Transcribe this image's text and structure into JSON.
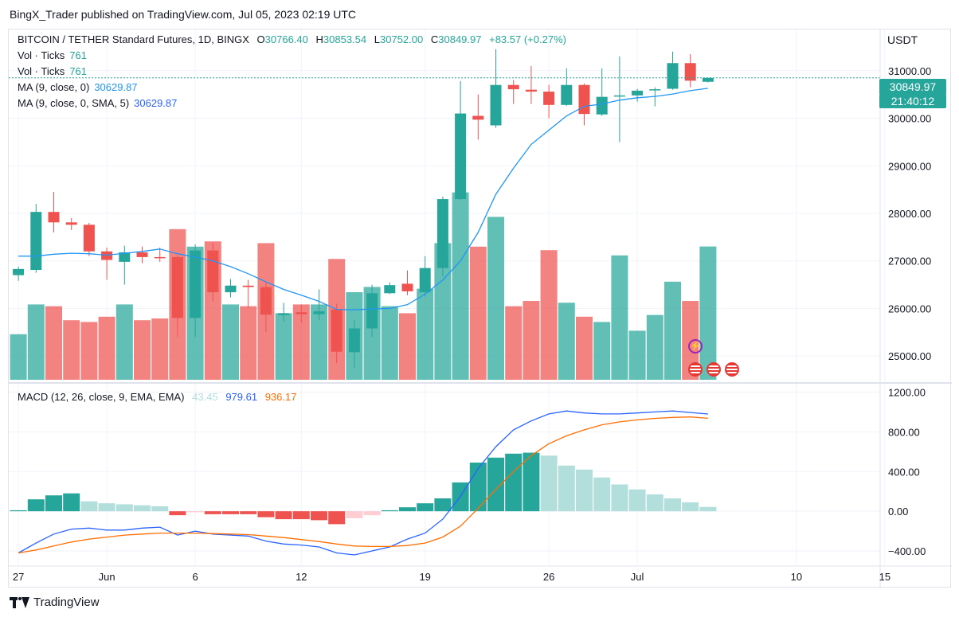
{
  "header": {
    "publish_line": "BingX_Trader published on TradingView.com, Jul 05, 2023 02:19 UTC"
  },
  "symbol": {
    "name": "BITCOIN / TETHER Standard Futures, 1D, BINGX",
    "open_label": "O",
    "open": "30766.40",
    "high_label": "H",
    "high": "30853.54",
    "low_label": "L",
    "low": "30752.00",
    "close_label": "C",
    "close": "30849.97",
    "change": "+83.57 (+0.27%)"
  },
  "indicators": {
    "vol1": {
      "label": "Vol · Ticks",
      "value": "761"
    },
    "vol2": {
      "label": "Vol · Ticks",
      "value": "761"
    },
    "ma1": {
      "label": "MA (9, close, 0)",
      "value": "30629.87"
    },
    "ma2": {
      "label": "MA (9, close, 0, SMA, 5)",
      "value": "30629.87"
    },
    "macd": {
      "label": "MACD (12, 26, close, 9, EMA, EMA)",
      "hist": "43.45",
      "macd": "979.61",
      "signal": "936.17"
    }
  },
  "price_axis": {
    "currency": "USDT",
    "last_price": "30849.97",
    "countdown": "21:40:12",
    "ticks": [
      "31000.00",
      "30000.00",
      "29000.00",
      "28000.00",
      "27000.00",
      "26000.00",
      "25000.00"
    ]
  },
  "macd_axis": {
    "ticks": [
      "1200.00",
      "800.00",
      "400.00",
      "0.00",
      "−400.00"
    ]
  },
  "time_axis": {
    "ticks": [
      "27",
      "Jun",
      "6",
      "12",
      "19",
      "26",
      "Jul",
      "10",
      "15"
    ]
  },
  "footer": {
    "brand": "TradingView"
  },
  "colors": {
    "up": "#26a69a",
    "down": "#ef5350",
    "ma": "#2962ff",
    "signal": "#ff6d00",
    "ma_price": "#2196f3"
  },
  "chart_data": {
    "type": "candlestick",
    "dates": [
      "May 27",
      "May 28",
      "May 29",
      "May 30",
      "May 31",
      "Jun 1",
      "Jun 2",
      "Jun 3",
      "Jun 4",
      "Jun 5",
      "Jun 6",
      "Jun 7",
      "Jun 8",
      "Jun 9",
      "Jun 10",
      "Jun 11",
      "Jun 12",
      "Jun 13",
      "Jun 14",
      "Jun 15",
      "Jun 16",
      "Jun 17",
      "Jun 18",
      "Jun 19",
      "Jun 20",
      "Jun 21",
      "Jun 22",
      "Jun 23",
      "Jun 24",
      "Jun 25",
      "Jun 26",
      "Jun 27",
      "Jun 28",
      "Jun 29",
      "Jun 30",
      "Jul 1",
      "Jul 2",
      "Jul 3",
      "Jul 4",
      "Jul 5"
    ],
    "ohlc": [
      [
        26700,
        26880,
        26580,
        26830
      ],
      [
        26810,
        28200,
        26750,
        28030
      ],
      [
        28030,
        28450,
        27600,
        27810
      ],
      [
        27810,
        27900,
        27650,
        27760
      ],
      [
        27760,
        27800,
        27100,
        27200
      ],
      [
        27200,
        27280,
        26600,
        27020
      ],
      [
        26980,
        27320,
        26500,
        27180
      ],
      [
        27180,
        27300,
        26950,
        27080
      ],
      [
        27080,
        27280,
        26980,
        27070
      ],
      [
        27080,
        27120,
        25400,
        25800
      ],
      [
        25800,
        27350,
        25400,
        27220
      ],
      [
        27220,
        27380,
        26150,
        26340
      ],
      [
        26340,
        26620,
        26230,
        26480
      ],
      [
        26480,
        26600,
        26020,
        26450
      ],
      [
        26450,
        26550,
        25500,
        25870
      ],
      [
        25860,
        26120,
        25720,
        25900
      ],
      [
        25920,
        26080,
        25700,
        25880
      ],
      [
        25880,
        26400,
        25750,
        25940
      ],
      [
        25980,
        26100,
        24850,
        25090
      ],
      [
        25080,
        25750,
        24750,
        25580
      ],
      [
        25580,
        26500,
        25400,
        26320
      ],
      [
        26320,
        26550,
        26300,
        26490
      ],
      [
        26520,
        26800,
        26280,
        26360
      ],
      [
        26340,
        27100,
        26250,
        26850
      ],
      [
        26850,
        28350,
        26680,
        28300
      ],
      [
        28300,
        30780,
        28280,
        30100
      ],
      [
        30050,
        30500,
        29550,
        29970
      ],
      [
        29850,
        31450,
        29800,
        30700
      ],
      [
        30700,
        30800,
        30300,
        30610
      ],
      [
        30600,
        31100,
        30300,
        30560
      ],
      [
        30560,
        30700,
        30000,
        30280
      ],
      [
        30280,
        31050,
        30260,
        30700
      ],
      [
        30700,
        30730,
        29850,
        30090
      ],
      [
        30080,
        31050,
        30050,
        30450
      ],
      [
        30460,
        31300,
        29500,
        30480
      ],
      [
        30480,
        30620,
        30350,
        30580
      ],
      [
        30590,
        30650,
        30250,
        30610
      ],
      [
        30620,
        31400,
        30600,
        31160
      ],
      [
        31160,
        31350,
        30650,
        30790
      ],
      [
        30766.4,
        30853.54,
        30752,
        30849.97
      ]
    ],
    "ma9": [
      27100,
      27100,
      27140,
      27160,
      27150,
      27120,
      27160,
      27200,
      27250,
      27150,
      27080,
      27000,
      26880,
      26730,
      26560,
      26400,
      26280,
      26150,
      25980,
      25970,
      25990,
      26000,
      26080,
      26300,
      26600,
      27000,
      27600,
      28400,
      28950,
      29450,
      29750,
      30050,
      30250,
      30300,
      30380,
      30430,
      30460,
      30510,
      30580,
      30629.87
    ],
    "volume": [
      260,
      430,
      420,
      340,
      330,
      360,
      430,
      340,
      350,
      860,
      760,
      790,
      430,
      420,
      780,
      380,
      430,
      430,
      690,
      500,
      530,
      420,
      380,
      520,
      780,
      1070,
      760,
      930,
      420,
      450,
      740,
      440,
      360,
      330,
      710,
      280,
      370,
      560,
      450,
      761
    ],
    "macd_hist": [
      10,
      120,
      160,
      180,
      100,
      80,
      70,
      60,
      50,
      -40,
      -10,
      -30,
      -30,
      -30,
      -60,
      -80,
      -80,
      -90,
      -130,
      -70,
      -40,
      10,
      40,
      80,
      130,
      290,
      490,
      540,
      580,
      590,
      560,
      460,
      420,
      340,
      270,
      220,
      170,
      130,
      90,
      43.45
    ],
    "macd_line": [
      -420,
      -320,
      -230,
      -180,
      -170,
      -190,
      -190,
      -170,
      -160,
      -240,
      -200,
      -230,
      -240,
      -250,
      -300,
      -330,
      -340,
      -360,
      -420,
      -440,
      -400,
      -360,
      -280,
      -220,
      -80,
      150,
      430,
      650,
      820,
      910,
      980,
      1010,
      990,
      980,
      980,
      990,
      1000,
      1010,
      995,
      979.61
    ],
    "signal_line": [
      -420,
      -390,
      -350,
      -310,
      -280,
      -260,
      -240,
      -230,
      -220,
      -220,
      -220,
      -225,
      -230,
      -235,
      -250,
      -265,
      -285,
      -305,
      -330,
      -350,
      -355,
      -355,
      -345,
      -320,
      -260,
      -150,
      30,
      220,
      400,
      560,
      680,
      760,
      820,
      870,
      900,
      920,
      935,
      945,
      950,
      936.17
    ],
    "price_range": [
      24500,
      31700
    ],
    "macd_range": [
      -520,
      1260
    ]
  }
}
